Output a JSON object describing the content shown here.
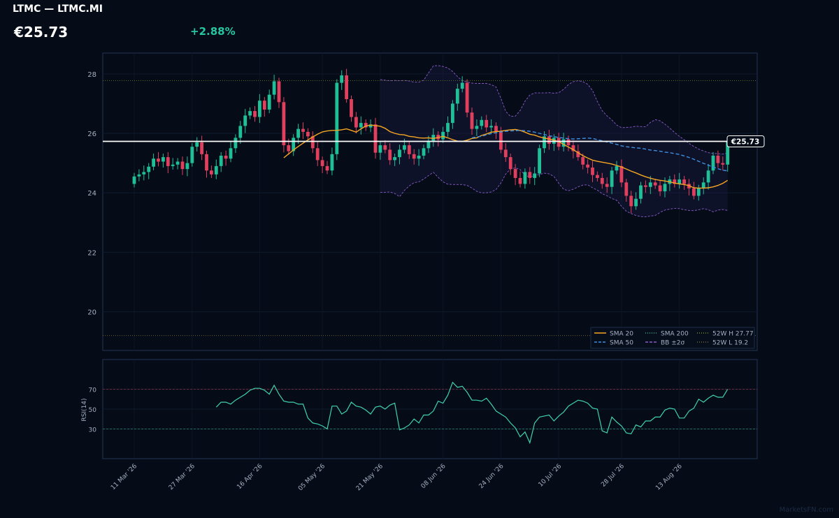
{
  "header": {
    "title": "LTMC — LTMC.MI",
    "price": "€25.73",
    "change": "+2.88%",
    "change_color": "#26c6a0"
  },
  "watermark": "MarketsFN.com",
  "colors": {
    "up": "#1fbf98",
    "down": "#e0405e",
    "sma20": "#f5a623",
    "sma50": "#3d8fe0",
    "sma200": "#2aa889",
    "bb": "#8a5cc8",
    "high52": "#7a8a2e",
    "low52": "#7a6a3a",
    "rsi": "#3fd1ae",
    "last_price": "#ffffff"
  },
  "chart_data": {
    "type": "candlestick",
    "price_label": "€25.73",
    "last_price": 25.73,
    "y_ticks": [
      20,
      22,
      24,
      26,
      28
    ],
    "ylim": [
      18.7,
      28.7
    ],
    "x_tick_labels": [
      "11 Mar '26",
      "27 Mar '26",
      "16 Apr '26",
      "05 May '26",
      "21 May '26",
      "08 Jun '26",
      "24 Jun '26",
      "10 Jul '26",
      "28 Jul '26",
      "13 Aug '26"
    ],
    "x_tick_index": [
      0,
      12,
      26,
      39,
      51,
      64,
      76,
      88,
      101,
      113
    ],
    "high_52w": 27.77,
    "low_52w": 19.2,
    "legend": [
      {
        "key": "sma20",
        "label": "SMA 20",
        "style": "solid"
      },
      {
        "key": "sma200",
        "label": "SMA 200",
        "style": "dotted"
      },
      {
        "key": "high52",
        "label": "52W H 27.77",
        "style": "dotted"
      },
      {
        "key": "sma50",
        "label": "SMA 50",
        "style": "dashed"
      },
      {
        "key": "bb",
        "label": "BB ±2σ",
        "style": "dashed"
      },
      {
        "key": "low52",
        "label": "52W L 19.2",
        "style": "dotted"
      }
    ],
    "legend_position": "bottom-right",
    "close": [
      24.55,
      24.62,
      24.7,
      24.88,
      25.15,
      25.05,
      25.2,
      24.9,
      24.95,
      25.05,
      24.8,
      25.0,
      25.55,
      25.7,
      25.3,
      24.75,
      24.62,
      24.9,
      25.25,
      25.15,
      25.5,
      25.85,
      26.25,
      26.6,
      26.75,
      26.55,
      27.1,
      26.8,
      27.3,
      27.75,
      27.05,
      25.6,
      25.4,
      25.85,
      26.15,
      26.05,
      25.9,
      25.5,
      25.1,
      24.9,
      24.75,
      25.3,
      27.7,
      27.95,
      27.15,
      26.55,
      26.2,
      26.35,
      26.2,
      26.3,
      25.35,
      25.6,
      25.45,
      25.1,
      25.2,
      25.45,
      25.6,
      25.3,
      25.15,
      25.25,
      25.5,
      25.75,
      25.95,
      25.8,
      26.05,
      26.35,
      27.0,
      27.5,
      27.7,
      26.7,
      26.15,
      26.25,
      26.45,
      26.2,
      26.25,
      26.05,
      25.45,
      25.2,
      24.8,
      24.5,
      24.3,
      24.7,
      24.5,
      24.65,
      25.5,
      25.9,
      25.65,
      25.85,
      25.55,
      25.8,
      25.6,
      25.4,
      25.2,
      24.95,
      24.85,
      24.6,
      24.5,
      24.3,
      24.2,
      24.75,
      24.9,
      24.35,
      23.9,
      23.55,
      23.8,
      24.25,
      24.2,
      24.35,
      24.25,
      24.05,
      24.3,
      24.45,
      24.3,
      24.45,
      24.3,
      24.15,
      23.9,
      24.15,
      24.35,
      24.75,
      25.25,
      25.0,
      24.95,
      25.73
    ],
    "sma20": [
      25.18,
      25.31,
      25.44,
      25.56,
      25.67,
      25.78,
      25.88,
      25.97,
      26.05,
      26.08,
      26.1,
      26.1,
      26.12,
      26.15,
      26.1,
      26.04,
      26.15,
      26.25,
      26.28,
      26.26,
      26.24,
      26.17,
      26.06,
      26.0,
      25.96,
      25.95,
      25.9,
      25.88,
      25.85,
      25.84,
      25.85,
      25.83,
      25.86,
      25.9,
      25.85,
      25.79,
      25.74,
      25.73,
      25.77,
      25.83,
      25.85,
      25.93,
      25.98,
      26.04,
      26.06,
      26.07,
      26.1,
      26.12,
      26.13,
      26.1,
      26.04,
      25.97,
      25.94,
      25.88,
      25.84,
      25.81,
      25.77,
      25.72,
      25.63,
      25.54,
      25.45,
      25.35,
      25.25,
      25.17,
      25.1,
      25.06,
      25.03,
      25.0,
      24.97,
      24.92,
      24.87,
      24.8,
      24.73,
      24.67,
      24.6,
      24.54,
      24.49,
      24.45,
      24.42,
      24.4,
      24.37,
      24.33,
      24.3,
      24.28,
      24.24,
      24.17,
      24.16,
      24.16,
      24.17,
      24.2,
      24.25,
      24.32,
      24.42
    ],
    "sma50": [
      25.85,
      25.88,
      25.9,
      25.95,
      25.99,
      26.02,
      26.05,
      26.07,
      26.08,
      26.09,
      26.1,
      26.09,
      26.07,
      26.04,
      26.0,
      25.96,
      25.92,
      25.89,
      25.86,
      25.84,
      25.82,
      25.81,
      25.82,
      25.83,
      25.84,
      25.83,
      25.79,
      25.75,
      25.71,
      25.67,
      25.63,
      25.58,
      25.55,
      25.53,
      25.51,
      25.5,
      25.47,
      25.44,
      25.42,
      25.4,
      25.37,
      25.35,
      25.32,
      25.29,
      25.24,
      25.19,
      25.13,
      25.06,
      24.99,
      24.93,
      24.87,
      24.81,
      24.76,
      24.74
    ],
    "bb_upper": [
      27.81,
      27.79,
      27.77,
      27.78,
      27.77,
      27.78,
      27.76,
      27.72,
      27.72,
      27.79,
      28.03,
      28.27,
      28.28,
      28.25,
      28.2,
      28.08,
      27.91,
      27.77,
      27.73,
      27.69,
      27.68,
      27.68,
      27.68,
      27.64,
      27.56,
      27.18,
      26.74,
      26.57,
      26.58,
      26.77,
      27.08,
      27.29,
      27.36,
      27.36,
      27.36,
      27.37,
      27.35,
      27.37,
      27.48,
      27.64,
      27.74,
      27.77,
      27.74,
      27.65,
      27.44,
      27.07,
      26.76,
      26.59,
      26.45,
      26.28,
      26.19,
      26.2,
      26.21,
      26.24,
      26.23,
      26.22,
      26.37,
      26.46,
      26.42,
      26.31,
      26.18,
      26.03,
      25.9,
      25.79,
      25.66,
      25.56,
      25.47,
      25.41,
      25.35,
      25.33,
      25.32,
      25.3,
      25.34
    ],
    "bb_lower": [
      24.02,
      24.02,
      24.03,
      23.98,
      23.87,
      24.08,
      24.23,
      24.34,
      24.37,
      24.46,
      24.58,
      24.69,
      24.52,
      24.37,
      24.29,
      24.28,
      24.28,
      24.28,
      24.25,
      24.16,
      24.05,
      24.0,
      24.0,
      24.03,
      24.11,
      24.33,
      24.63,
      24.8,
      24.84,
      24.78,
      24.58,
      24.54,
      24.57,
      24.62,
      24.66,
      24.64,
      24.55,
      24.32,
      24.12,
      24.07,
      24.12,
      24.2,
      24.26,
      24.27,
      24.17,
      24.09,
      23.97,
      23.9,
      23.81,
      23.75,
      23.55,
      23.38,
      23.3,
      23.24,
      23.2,
      23.19,
      23.22,
      23.24,
      23.34,
      23.42,
      23.45,
      23.48,
      23.47,
      23.43,
      23.41,
      23.4,
      23.43,
      23.47,
      23.43,
      23.36,
      23.42,
      23.44,
      23.41
    ],
    "rsi": {
      "label": "RSI(14)",
      "y_ticks": [
        30,
        50,
        70
      ],
      "ylim": [
        0,
        100
      ],
      "overbought": 70,
      "oversold": 30,
      "values": [
        52,
        57,
        57,
        55,
        59,
        62,
        65,
        69,
        71,
        71,
        69,
        65,
        74,
        65,
        58,
        57,
        57,
        55,
        55,
        41,
        36,
        35,
        33,
        30,
        53,
        53,
        45,
        48,
        57,
        53,
        52,
        49,
        45,
        52,
        53,
        50,
        54,
        56,
        29,
        31,
        34,
        40,
        36,
        44,
        44,
        48,
        58,
        56,
        64,
        77,
        72,
        73,
        67,
        59,
        59,
        58,
        61,
        55,
        48,
        45,
        42,
        36,
        31,
        22,
        27,
        16,
        36,
        42,
        43,
        44,
        38,
        43,
        47,
        53,
        56,
        59,
        58,
        56,
        51,
        50,
        28,
        26,
        42,
        37,
        33,
        26,
        25,
        34,
        32,
        38,
        38,
        42,
        42,
        49,
        51,
        50,
        41,
        41,
        48,
        51,
        60,
        57,
        61,
        64,
        62,
        62,
        70
      ]
    }
  }
}
